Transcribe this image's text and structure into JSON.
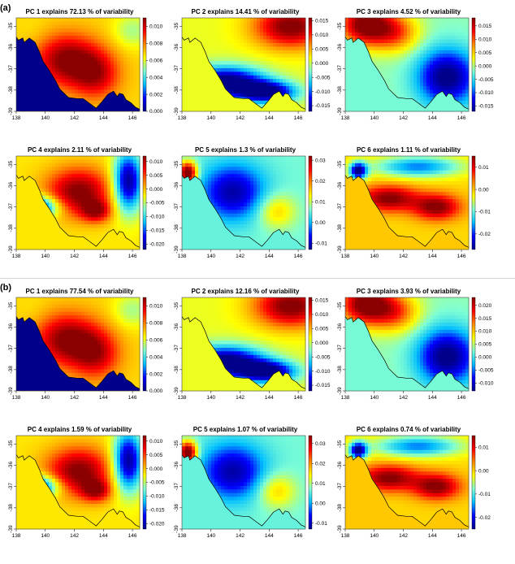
{
  "sections": [
    {
      "label": "(a)",
      "panels": [
        {
          "title": "PC 1  explains  72.13 % of variability",
          "pattern": "pc1",
          "cbar": {
            "min": 0.0,
            "max": 0.011,
            "ticks": [
              "0.010",
              "0.008",
              "0.006",
              "0.004",
              "0.002",
              "0.000"
            ],
            "tick_values": [
              0.01,
              0.008,
              0.006,
              0.004,
              0.002,
              0.0
            ]
          }
        },
        {
          "title": "PC 2  explains  14.41 % of variability",
          "pattern": "pc2",
          "cbar": {
            "min": -0.017,
            "max": 0.016,
            "ticks": [
              "0.015",
              "0.010",
              "0.005",
              "0.000",
              "-0.005",
              "-0.010",
              "-0.015"
            ],
            "tick_values": [
              0.015,
              0.01,
              0.005,
              0.0,
              -0.005,
              -0.01,
              -0.015
            ]
          }
        },
        {
          "title": "PC 3  explains  4.52 % of variability",
          "pattern": "pc3",
          "cbar": {
            "min": -0.017,
            "max": 0.018,
            "ticks": [
              "0.015",
              "0.010",
              "0.005",
              "0.000",
              "-0.005",
              "-0.010",
              "-0.015"
            ],
            "tick_values": [
              0.015,
              0.01,
              0.005,
              0.0,
              -0.005,
              -0.01,
              -0.015
            ]
          }
        },
        {
          "title": "PC 4  explains  2.11 % of variability",
          "pattern": "pc4",
          "cbar": {
            "min": -0.022,
            "max": 0.012,
            "ticks": [
              "0.010",
              "0.005",
              "0.000",
              "-0.005",
              "-0.010",
              "-0.015",
              "-0.020"
            ],
            "tick_values": [
              0.01,
              0.005,
              0.0,
              -0.005,
              -0.01,
              -0.015,
              -0.02
            ]
          }
        },
        {
          "title": "PC 5  explains  1.3 % of variability",
          "pattern": "pc5",
          "cbar": {
            "min": -0.013,
            "max": 0.032,
            "ticks": [
              "0.03",
              "0.02",
              "0.01",
              "0.00",
              "-0.01"
            ],
            "tick_values": [
              0.03,
              0.02,
              0.01,
              0.0,
              -0.01
            ]
          }
        },
        {
          "title": "PC 6  explains  1.11 % of variability",
          "pattern": "pc6",
          "cbar": {
            "min": -0.027,
            "max": 0.015,
            "ticks": [
              "0.01",
              "0.00",
              "-0.01",
              "-0.02"
            ],
            "tick_values": [
              0.01,
              0.0,
              -0.01,
              -0.02
            ]
          }
        }
      ]
    },
    {
      "label": "(b)",
      "panels": [
        {
          "title": "PC 1  explains  77.54 % of variability",
          "pattern": "pc1",
          "cbar": {
            "min": 0.0,
            "max": 0.011,
            "ticks": [
              "0.010",
              "0.008",
              "0.006",
              "0.004",
              "0.002",
              "0.000"
            ],
            "tick_values": [
              0.01,
              0.008,
              0.006,
              0.004,
              0.002,
              0.0
            ]
          }
        },
        {
          "title": "PC 2  explains  12.16 % of variability",
          "pattern": "pc2",
          "cbar": {
            "min": -0.017,
            "max": 0.016,
            "ticks": [
              "0.015",
              "0.010",
              "0.005",
              "0.000",
              "-0.005",
              "-0.010",
              "-0.015"
            ],
            "tick_values": [
              0.015,
              0.01,
              0.005,
              0.0,
              -0.005,
              -0.01,
              -0.015
            ]
          }
        },
        {
          "title": "PC 3  explains  3.93 % of variability",
          "pattern": "pc3",
          "cbar": {
            "min": -0.013,
            "max": 0.023,
            "ticks": [
              "0.020",
              "0.015",
              "0.010",
              "0.005",
              "0.000",
              "-0.005",
              "-0.010"
            ],
            "tick_values": [
              0.02,
              0.015,
              0.01,
              0.005,
              0.0,
              -0.005,
              -0.01
            ]
          }
        },
        {
          "title": "PC 4  explains  1.59 % of variability",
          "pattern": "pc4",
          "cbar": {
            "min": -0.022,
            "max": 0.012,
            "ticks": [
              "0.010",
              "0.005",
              "0.000",
              "-0.005",
              "-0.010",
              "-0.015",
              "-0.020"
            ],
            "tick_values": [
              0.01,
              0.005,
              0.0,
              -0.005,
              -0.01,
              -0.015,
              -0.02
            ]
          }
        },
        {
          "title": "PC 5  explains  1.07 % of variability",
          "pattern": "pc5",
          "cbar": {
            "min": -0.013,
            "max": 0.034,
            "ticks": [
              "0.03",
              "0.02",
              "0.01",
              "0.00",
              "-0.01"
            ],
            "tick_values": [
              0.03,
              0.02,
              0.01,
              0.0,
              -0.01
            ]
          }
        },
        {
          "title": "PC 6  explains  0.74 % of variability",
          "pattern": "pc6",
          "cbar": {
            "min": -0.025,
            "max": 0.015,
            "ticks": [
              "0.01",
              "0.00",
              "-0.01",
              "-0.02"
            ],
            "tick_values": [
              0.01,
              0.0,
              -0.01,
              -0.02
            ]
          }
        }
      ]
    }
  ],
  "chart_data": {
    "type": "heatmap",
    "description_of_axes": "map panels, x = longitude, y = latitude",
    "xlim": [
      138,
      146.5
    ],
    "ylim": [
      -39,
      -34.6
    ],
    "x_ticks": [
      "138",
      "140",
      "142",
      "144",
      "146"
    ],
    "y_ticks": [
      "-35",
      "-36",
      "-37",
      "-38",
      "-39"
    ],
    "colormap": [
      "#00008b",
      "#0000ff",
      "#00bfff",
      "#7fffd4",
      "#ffff00",
      "#ff8c00",
      "#ff0000",
      "#8b0000"
    ],
    "grid": false,
    "legend": "colorbar-right"
  }
}
